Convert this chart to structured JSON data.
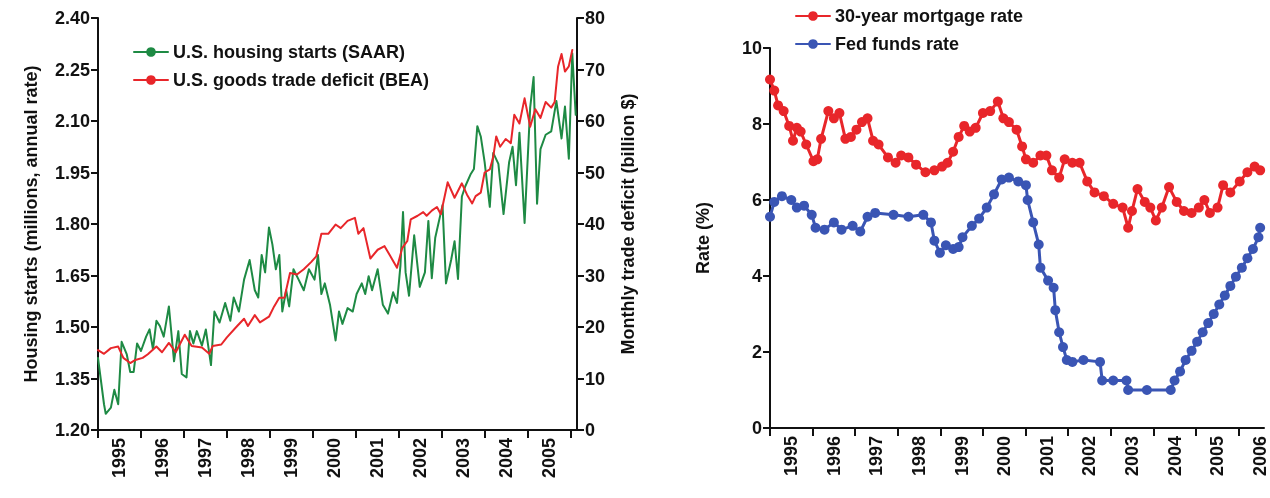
{
  "chart_data": [
    {
      "type": "line",
      "ylabel": "Housing starts (millions, annual rate)",
      "y2label": "Monthly trade deficit (billion $)",
      "xlim": [
        1995,
        2006.15
      ],
      "xticks": [
        {
          "value": 1995,
          "label": null
        },
        {
          "value": 1995.5,
          "label": "1995"
        },
        {
          "value": 1996,
          "label": null
        },
        {
          "value": 1996.5,
          "label": "1996"
        },
        {
          "value": 1997,
          "label": null
        },
        {
          "value": 1997.5,
          "label": "1997"
        },
        {
          "value": 1998,
          "label": null
        },
        {
          "value": 1998.5,
          "label": "1998"
        },
        {
          "value": 1999,
          "label": null
        },
        {
          "value": 1999.5,
          "label": "1999"
        },
        {
          "value": 2000,
          "label": null
        },
        {
          "value": 2000.5,
          "label": "2000"
        },
        {
          "value": 2001,
          "label": null
        },
        {
          "value": 2001.5,
          "label": "2001"
        },
        {
          "value": 2002,
          "label": null
        },
        {
          "value": 2002.5,
          "label": "2002"
        },
        {
          "value": 2003,
          "label": null
        },
        {
          "value": 2003.5,
          "label": "2003"
        },
        {
          "value": 2004,
          "label": null
        },
        {
          "value": 2004.5,
          "label": "2004"
        },
        {
          "value": 2005,
          "label": null
        },
        {
          "value": 2005.5,
          "label": "2005"
        },
        {
          "value": 2006,
          "label": null
        }
      ],
      "ylim": [
        1.2,
        2.4
      ],
      "yticks": [
        {
          "value": 1.2,
          "label": "1.20"
        },
        {
          "value": 1.35,
          "label": "1.35"
        },
        {
          "value": 1.5,
          "label": "1.50"
        },
        {
          "value": 1.65,
          "label": "1.65"
        },
        {
          "value": 1.8,
          "label": "1.80"
        },
        {
          "value": 1.95,
          "label": "1.95"
        },
        {
          "value": 2.1,
          "label": "2.10"
        },
        {
          "value": 2.25,
          "label": "2.25"
        },
        {
          "value": 2.4,
          "label": "2.40"
        }
      ],
      "y2lim": [
        0,
        80
      ],
      "y2ticks": [
        0,
        10,
        20,
        30,
        40,
        50,
        60,
        70,
        80
      ],
      "grid": false,
      "legend": "top left",
      "marker": "none",
      "series": [
        {
          "name": "U.S. housing starts (SAAR)",
          "color": "#1e8a44",
          "x": [
            1995.0,
            1995.14,
            1995.18,
            1995.3,
            1995.38,
            1995.47,
            1995.55,
            1995.67,
            1995.75,
            1995.83,
            1995.91,
            1996.0,
            1996.12,
            1996.2,
            1996.28,
            1996.36,
            1996.44,
            1996.53,
            1996.65,
            1996.77,
            1996.87,
            1996.95,
            1997.06,
            1997.14,
            1997.22,
            1997.3,
            1997.42,
            1997.51,
            1997.63,
            1997.71,
            1997.83,
            1997.96,
            1998.08,
            1998.16,
            1998.28,
            1998.4,
            1998.53,
            1998.65,
            1998.73,
            1998.81,
            1998.89,
            1998.98,
            1999.06,
            1999.14,
            1999.22,
            1999.29,
            1999.38,
            1999.45,
            1999.55,
            1999.67,
            1999.79,
            1999.91,
            2000.04,
            2000.12,
            2000.2,
            2000.28,
            2000.4,
            2000.53,
            2000.61,
            2000.69,
            2000.81,
            2000.93,
            2001.02,
            2001.14,
            2001.22,
            2001.3,
            2001.38,
            2001.51,
            2001.63,
            2001.75,
            2001.87,
            2001.96,
            2002.04,
            2002.1,
            2002.16,
            2002.24,
            2002.36,
            2002.49,
            2002.61,
            2002.69,
            2002.77,
            2002.85,
            2003.02,
            2003.1,
            2003.22,
            2003.3,
            2003.38,
            2003.47,
            2003.55,
            2003.67,
            2003.75,
            2003.83,
            2003.91,
            2004.0,
            2004.12,
            2004.2,
            2004.32,
            2004.44,
            2004.57,
            2004.65,
            2004.73,
            2004.81,
            2004.93,
            2005.06,
            2005.14,
            2005.22,
            2005.3,
            2005.42,
            2005.55,
            2005.67,
            2005.79,
            2005.87,
            2005.96,
            2006.04,
            2006.12
          ],
          "values": [
            1.41,
            1.275,
            1.247,
            1.265,
            1.317,
            1.275,
            1.457,
            1.42,
            1.369,
            1.369,
            1.452,
            1.43,
            1.472,
            1.493,
            1.435,
            1.518,
            1.503,
            1.472,
            1.56,
            1.4,
            1.488,
            1.363,
            1.353,
            1.488,
            1.452,
            1.488,
            1.446,
            1.493,
            1.389,
            1.545,
            1.513,
            1.57,
            1.518,
            1.586,
            1.545,
            1.638,
            1.695,
            1.607,
            1.586,
            1.71,
            1.659,
            1.79,
            1.74,
            1.668,
            1.71,
            1.545,
            1.607,
            1.56,
            1.668,
            1.638,
            1.607,
            1.668,
            1.638,
            1.71,
            1.596,
            1.627,
            1.565,
            1.461,
            1.545,
            1.509,
            1.555,
            1.545,
            1.596,
            1.627,
            1.596,
            1.648,
            1.607,
            1.668,
            1.565,
            1.539,
            1.601,
            1.57,
            1.679,
            1.835,
            1.659,
            1.591,
            1.767,
            1.617,
            1.659,
            1.809,
            1.642,
            1.76,
            1.855,
            1.627,
            1.695,
            1.75,
            1.64,
            1.88,
            1.91,
            1.944,
            1.96,
            2.085,
            2.055,
            1.98,
            1.85,
            2.007,
            1.975,
            1.829,
            1.98,
            2.025,
            1.913,
            2.066,
            1.803,
            2.139,
            2.228,
            1.859,
            2.018,
            2.06,
            2.07,
            2.158,
            2.049,
            2.142,
            1.99,
            2.297,
            2.118
          ]
        },
        {
          "name": "U.S. goods trade deficit (BEA)",
          "color": "#e8262a",
          "axis": "y2",
          "x": [
            1995.0,
            1995.14,
            1995.3,
            1995.47,
            1995.59,
            1995.75,
            1995.87,
            1996.04,
            1996.16,
            1996.36,
            1996.49,
            1996.65,
            1996.81,
            1997.02,
            1997.18,
            1997.42,
            1997.59,
            1997.67,
            1997.87,
            1998.0,
            1998.24,
            1998.4,
            1998.49,
            1998.65,
            1998.77,
            1998.98,
            1999.1,
            1999.22,
            1999.34,
            1999.47,
            1999.63,
            1999.79,
            1999.96,
            2000.08,
            2000.2,
            2000.36,
            2000.53,
            2000.65,
            2000.81,
            2000.98,
            2001.06,
            2001.18,
            2001.34,
            2001.51,
            2001.67,
            2001.79,
            2001.96,
            2002.08,
            2002.2,
            2002.28,
            2002.44,
            2002.57,
            2002.65,
            2002.77,
            2002.89,
            2002.98,
            2003.14,
            2003.3,
            2003.47,
            2003.59,
            2003.71,
            2003.79,
            2003.91,
            2004.0,
            2004.12,
            2004.2,
            2004.27,
            2004.36,
            2004.49,
            2004.61,
            2004.69,
            2004.81,
            2004.93,
            2005.06,
            2005.18,
            2005.3,
            2005.42,
            2005.55,
            2005.63,
            2005.71,
            2005.79,
            2005.87,
            2005.96,
            2006.04
          ],
          "values": [
            15.5,
            14.8,
            15.9,
            16.2,
            14.0,
            13.0,
            13.6,
            14.0,
            14.7,
            16.2,
            15.1,
            16.9,
            15.1,
            18.5,
            16.3,
            16.0,
            14.8,
            16.3,
            16.6,
            18.0,
            20.2,
            21.6,
            20.2,
            22.3,
            20.9,
            22.0,
            24.0,
            25.7,
            25.7,
            30.5,
            30.2,
            31.2,
            32.6,
            33.7,
            38.1,
            38.1,
            39.9,
            39.2,
            40.6,
            41.2,
            38.1,
            39.2,
            33.3,
            35.0,
            35.7,
            34.0,
            31.5,
            35.3,
            36.7,
            40.9,
            41.6,
            42.3,
            41.6,
            42.6,
            43.3,
            41.9,
            48.1,
            45.1,
            47.9,
            45.7,
            44.0,
            45.4,
            46.1,
            50.0,
            50.6,
            53.0,
            57.0,
            55.0,
            56.5,
            55.7,
            61.2,
            59.5,
            64.4,
            58.9,
            62.3,
            60.6,
            63.7,
            62.6,
            63.7,
            70.6,
            73.0,
            69.6,
            70.6,
            73.8
          ]
        }
      ]
    },
    {
      "type": "line",
      "ylabel": "Rate (%)",
      "xlim": [
        1995,
        2006.6
      ],
      "xticks": [
        {
          "value": 1995,
          "label": null
        },
        {
          "value": 1995.5,
          "label": "1995"
        },
        {
          "value": 1996,
          "label": null
        },
        {
          "value": 1996.5,
          "label": "1996"
        },
        {
          "value": 1997,
          "label": null
        },
        {
          "value": 1997.5,
          "label": "1997"
        },
        {
          "value": 1998,
          "label": null
        },
        {
          "value": 1998.5,
          "label": "1998"
        },
        {
          "value": 1999,
          "label": null
        },
        {
          "value": 1999.5,
          "label": "1999"
        },
        {
          "value": 2000,
          "label": null
        },
        {
          "value": 2000.5,
          "label": "2000"
        },
        {
          "value": 2001,
          "label": null
        },
        {
          "value": 2001.5,
          "label": "2001"
        },
        {
          "value": 2002,
          "label": null
        },
        {
          "value": 2002.5,
          "label": "2002"
        },
        {
          "value": 2003,
          "label": null
        },
        {
          "value": 2003.5,
          "label": "2003"
        },
        {
          "value": 2004,
          "label": null
        },
        {
          "value": 2004.5,
          "label": "2004"
        },
        {
          "value": 2005,
          "label": null
        },
        {
          "value": 2005.5,
          "label": "2005"
        },
        {
          "value": 2006,
          "label": null
        },
        {
          "value": 2006.5,
          "label": "2006"
        }
      ],
      "ylim": [
        0,
        10
      ],
      "yticks": [
        0,
        2,
        4,
        6,
        8,
        10
      ],
      "grid": false,
      "legend": "top",
      "marker": "circle",
      "series": [
        {
          "name": "30-year mortgage rate",
          "color": "#e8262a",
          "x": [
            1995.0,
            1995.1,
            1995.19,
            1995.32,
            1995.45,
            1995.54,
            1995.63,
            1995.72,
            1995.85,
            1996.02,
            1996.11,
            1996.2,
            1996.37,
            1996.5,
            1996.63,
            1996.77,
            1996.9,
            1997.03,
            1997.16,
            1997.29,
            1997.42,
            1997.55,
            1997.77,
            1997.95,
            1998.08,
            1998.25,
            1998.43,
            1998.65,
            1998.86,
            1999.04,
            1999.17,
            1999.3,
            1999.43,
            1999.56,
            1999.69,
            1999.83,
            2000.0,
            2000.17,
            2000.35,
            2000.48,
            2000.61,
            2000.79,
            2000.92,
            2001.01,
            2001.18,
            2001.35,
            2001.49,
            2001.62,
            2001.79,
            2001.92,
            2002.1,
            2002.27,
            2002.45,
            2002.62,
            2002.84,
            2003.06,
            2003.28,
            2003.41,
            2003.5,
            2003.63,
            2003.8,
            2003.93,
            2004.06,
            2004.2,
            2004.37,
            2004.55,
            2004.72,
            2004.9,
            2005.07,
            2005.2,
            2005.33,
            2005.51,
            2005.64,
            2005.81,
            2006.03,
            2006.21,
            2006.38,
            2006.51
          ],
          "values": [
            9.17,
            8.88,
            8.49,
            8.34,
            7.95,
            7.56,
            7.9,
            7.8,
            7.46,
            7.02,
            7.07,
            7.61,
            8.34,
            8.15,
            8.29,
            7.61,
            7.66,
            7.85,
            8.05,
            8.15,
            7.56,
            7.46,
            7.12,
            6.98,
            7.17,
            7.12,
            6.93,
            6.73,
            6.78,
            6.88,
            6.98,
            7.27,
            7.66,
            7.95,
            7.8,
            7.9,
            8.29,
            8.34,
            8.59,
            8.15,
            8.05,
            7.85,
            7.41,
            7.07,
            6.98,
            7.17,
            7.17,
            6.78,
            6.59,
            7.07,
            6.98,
            6.98,
            6.49,
            6.2,
            6.1,
            5.9,
            5.8,
            5.27,
            5.71,
            6.29,
            5.95,
            5.8,
            5.46,
            5.8,
            6.34,
            5.95,
            5.71,
            5.66,
            5.8,
            6.0,
            5.66,
            5.8,
            6.39,
            6.2,
            6.49,
            6.73,
            6.88,
            6.78
          ]
        },
        {
          "name": "Fed funds rate",
          "color": "#3a55b4",
          "x": [
            1995.0,
            1995.1,
            1995.28,
            1995.5,
            1995.63,
            1995.8,
            1995.98,
            1996.07,
            1996.28,
            1996.5,
            1996.68,
            1996.94,
            1997.12,
            1997.29,
            1997.47,
            1997.9,
            1998.25,
            1998.6,
            1998.78,
            1998.86,
            1998.99,
            1999.13,
            1999.3,
            1999.43,
            1999.52,
            1999.74,
            1999.91,
            2000.09,
            2000.26,
            2000.44,
            2000.61,
            2000.83,
            2001.01,
            2001.05,
            2001.18,
            2001.31,
            2001.35,
            2001.53,
            2001.66,
            2001.7,
            2001.79,
            2001.88,
            2001.97,
            2002.1,
            2002.36,
            2002.75,
            2002.8,
            2003.06,
            2003.37,
            2003.41,
            2003.85,
            2004.41,
            2004.5,
            2004.63,
            2004.76,
            2004.9,
            2005.03,
            2005.16,
            2005.29,
            2005.42,
            2005.55,
            2005.68,
            2005.81,
            2005.94,
            2006.08,
            2006.21,
            2006.34,
            2006.47,
            2006.51
          ],
          "values": [
            5.56,
            5.95,
            6.1,
            6.0,
            5.8,
            5.85,
            5.61,
            5.27,
            5.22,
            5.41,
            5.22,
            5.32,
            5.17,
            5.56,
            5.66,
            5.61,
            5.56,
            5.61,
            5.41,
            4.93,
            4.61,
            4.81,
            4.71,
            4.76,
            5.02,
            5.32,
            5.51,
            5.8,
            6.15,
            6.54,
            6.59,
            6.49,
            6.39,
            6.0,
            5.41,
            4.83,
            4.22,
            3.88,
            3.69,
            3.1,
            2.52,
            2.13,
            1.79,
            1.74,
            1.79,
            1.74,
            1.25,
            1.25,
            1.25,
            1.0,
            1.0,
            1.0,
            1.25,
            1.49,
            1.79,
            2.03,
            2.27,
            2.52,
            2.76,
            3.0,
            3.25,
            3.49,
            3.74,
            3.98,
            4.22,
            4.47,
            4.71,
            5.02,
            5.27
          ]
        }
      ]
    }
  ]
}
